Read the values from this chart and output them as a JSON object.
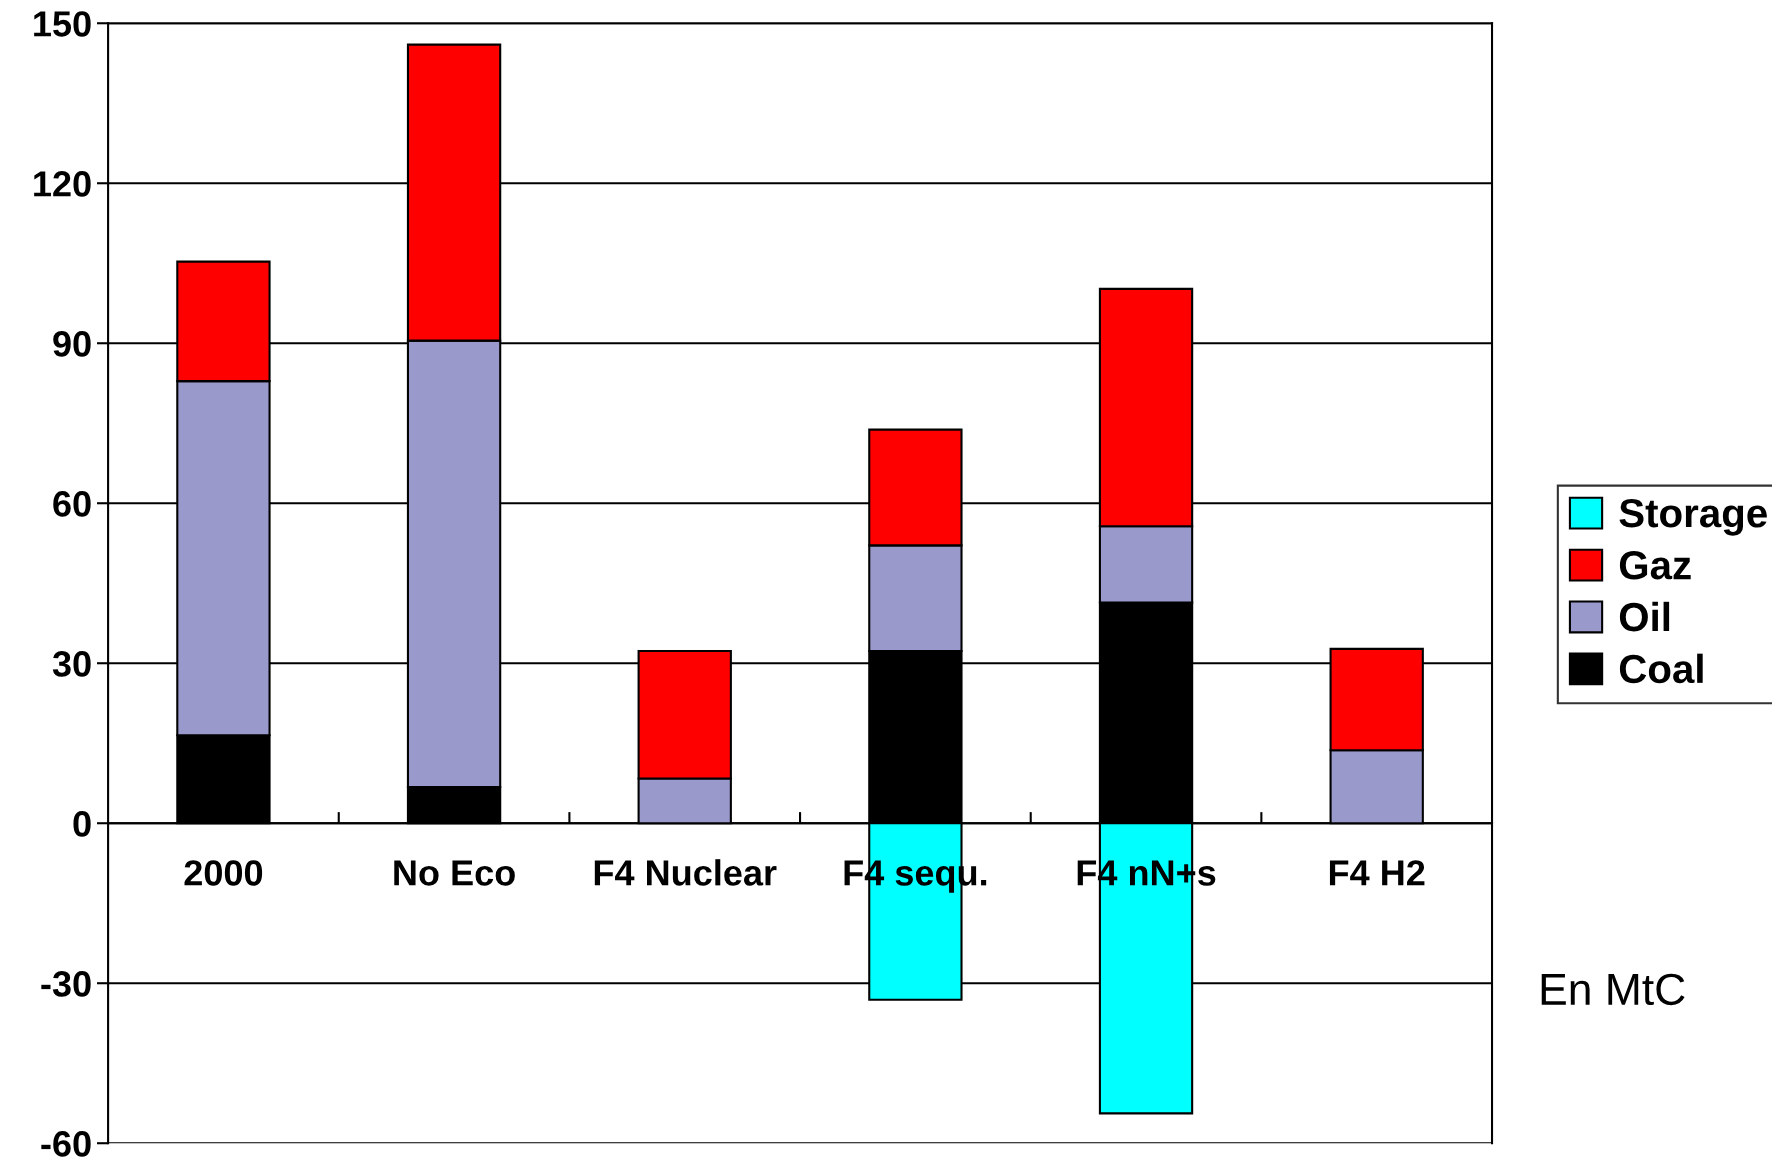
{
  "chart_data": {
    "type": "bar",
    "stacked": true,
    "categories": [
      "2000",
      "No Eco",
      "F4 Nuclear",
      "F4 sequ.",
      "F4 nN+s",
      "F4 H2"
    ],
    "series": [
      {
        "name": "Coal",
        "color": "#000000",
        "values": [
          16.5,
          6.8,
          null,
          32.3,
          41.4,
          null
        ]
      },
      {
        "name": "Oil",
        "color": "#9999cc",
        "values": [
          66.4,
          83.7,
          8.4,
          19.8,
          14.3,
          13.7
        ]
      },
      {
        "name": "Gaz",
        "color": "#ff0000",
        "values": [
          22.4,
          55.5,
          23.9,
          21.7,
          44.5,
          19.0
        ]
      },
      {
        "name": "Storage",
        "color": "#00ffff",
        "values": [
          null,
          null,
          null,
          -33.1,
          -54.4,
          null
        ]
      }
    ],
    "ylim": [
      -60,
      150
    ],
    "yticks": [
      -60,
      -30,
      0,
      30,
      60,
      90,
      120,
      150
    ],
    "grid": "y",
    "legend": "right",
    "annotations": [
      "En MtC"
    ]
  }
}
